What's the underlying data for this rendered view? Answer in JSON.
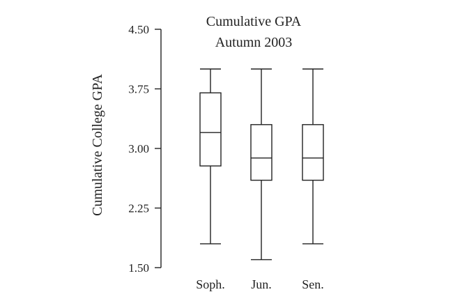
{
  "chart_data": {
    "type": "boxplot",
    "title": [
      "Cumulative GPA",
      "Autumn 2003"
    ],
    "ylabel": "Cumulative College GPA",
    "ylim": [
      1.5,
      4.5
    ],
    "yticks": [
      "1.50",
      "2.25",
      "3.00",
      "3.75",
      "4.50"
    ],
    "grid": false,
    "categories": [
      "Soph.",
      "Jun.",
      "Sen."
    ],
    "boxes": [
      {
        "category": "Soph.",
        "min": 1.8,
        "q1": 2.78,
        "median": 3.2,
        "q3": 3.7,
        "max": 4.0
      },
      {
        "category": "Jun.",
        "min": 1.6,
        "q1": 2.6,
        "median": 2.88,
        "q3": 3.3,
        "max": 4.0
      },
      {
        "category": "Sen.",
        "min": 1.8,
        "q1": 2.6,
        "median": 2.88,
        "q3": 3.3,
        "max": 4.0
      }
    ]
  }
}
